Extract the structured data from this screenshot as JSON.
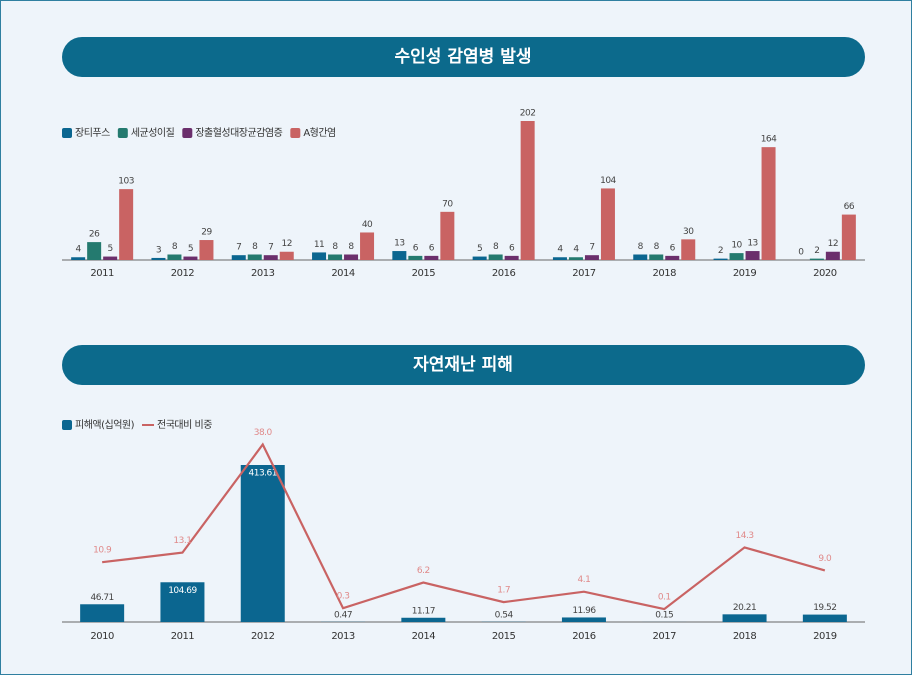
{
  "chart_data": [
    {
      "type": "bar",
      "title": "수인성 감염병 발생",
      "categories": [
        "2011",
        "2012",
        "2013",
        "2014",
        "2015",
        "2016",
        "2017",
        "2018",
        "2019",
        "2020"
      ],
      "series": [
        {
          "name": "장티푸스",
          "color": "#0b6690",
          "values": [
            4,
            3,
            7,
            11,
            13,
            5,
            4,
            8,
            2,
            0
          ]
        },
        {
          "name": "세균성이질",
          "color": "#247a6f",
          "values": [
            26,
            8,
            8,
            8,
            6,
            8,
            4,
            8,
            10,
            2
          ]
        },
        {
          "name": "장출혈성대장균감염증",
          "color": "#6b2f6c",
          "values": [
            5,
            5,
            7,
            8,
            6,
            6,
            7,
            6,
            13,
            12
          ]
        },
        {
          "name": "A형간염",
          "color": "#c96363",
          "values": [
            103,
            29,
            12,
            40,
            70,
            202,
            104,
            30,
            164,
            66
          ]
        }
      ]
    },
    {
      "type": "combo",
      "title": "자연재난 피해",
      "categories": [
        "2010",
        "2011",
        "2012",
        "2013",
        "2014",
        "2015",
        "2016",
        "2017",
        "2018",
        "2019"
      ],
      "series": [
        {
          "name": "피해액(십억원)",
          "type": "bar",
          "color": "#0b6690",
          "values": [
            46.71,
            104.69,
            413.61,
            0.47,
            11.17,
            0.54,
            11.96,
            0.15,
            20.21,
            19.52
          ]
        },
        {
          "name": "전국대비 비중",
          "type": "line",
          "color": "#c96363",
          "values": [
            10.9,
            13.1,
            38.0,
            0.3,
            6.2,
            1.7,
            4.1,
            0.1,
            14.3,
            9.0
          ],
          "value_labels": [
            "10.9",
            "13.1",
            "38.0",
            "0.3",
            "6.2",
            "1.7",
            "4.1",
            "0.1",
            "14.3",
            "9.0"
          ]
        }
      ]
    }
  ]
}
